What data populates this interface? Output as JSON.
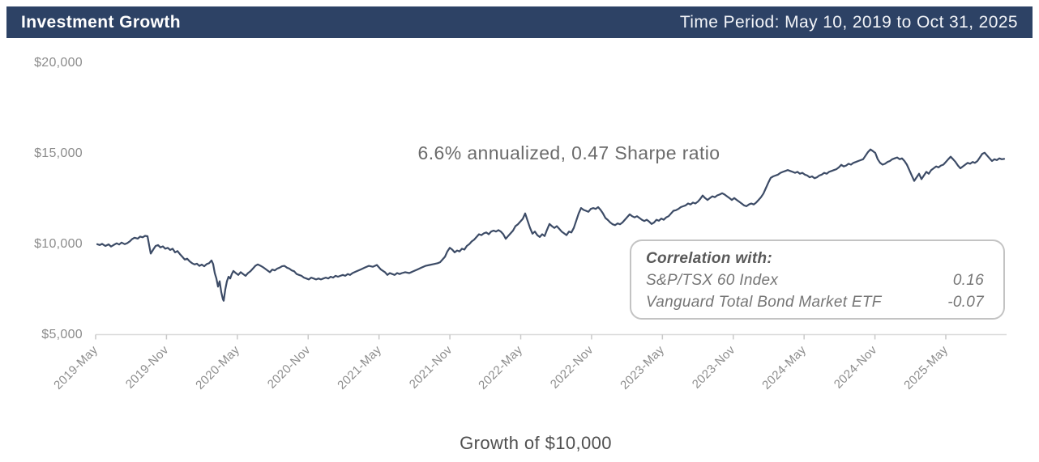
{
  "header": {
    "title": "Investment Growth",
    "time_period": "Time Period: May 10, 2019 to Oct 31, 2025"
  },
  "annotation": "6.6% annualized, 0.47 Sharpe ratio",
  "correlation_box": {
    "title": "Correlation with:",
    "rows": [
      {
        "label": "S&P/TSX 60 Index",
        "value": "0.16"
      },
      {
        "label": "Vanguard Total Bond Market ETF",
        "value": "-0.07"
      }
    ]
  },
  "xlabel": "Growth of $10,000",
  "colors": {
    "header_bg": "#2d4265",
    "line": "#3c4b66",
    "axis": "#dcdcdc",
    "tick": "#c9c9c9"
  },
  "chart_data": {
    "type": "line",
    "title": "Investment Growth",
    "xlabel": "Growth of $10,000",
    "annualized_return_pct": 6.6,
    "sharpe_ratio": 0.47,
    "correlations": {
      "S&P/TSX 60 Index": 0.16,
      "Vanguard Total Bond Market ETF": -0.07
    },
    "x_range": [
      "2019-05-10",
      "2025-10-31"
    ],
    "x_tick_labels": [
      "2019-May",
      "2019-Nov",
      "2020-May",
      "2020-Nov",
      "2021-May",
      "2021-Nov",
      "2022-May",
      "2022-Nov",
      "2023-May",
      "2023-Nov",
      "2024-May",
      "2024-Nov",
      "2025-May"
    ],
    "y_tick_values": [
      5000,
      10000,
      15000,
      20000
    ],
    "y_tick_labels": [
      "$5,000",
      "$10,000",
      "$15,000",
      "$20,000"
    ],
    "ylim": [
      5000,
      20800
    ],
    "gridlines": false,
    "legend": false,
    "points_format": "[x_position_px (linear in time across x_range), dollar_value]",
    "points": [
      [
        120,
        10000
      ],
      [
        123,
        9950
      ],
      [
        126,
        10020
      ],
      [
        130,
        9900
      ],
      [
        134,
        9990
      ],
      [
        137,
        9870
      ],
      [
        140,
        9950
      ],
      [
        144,
        10050
      ],
      [
        147,
        9980
      ],
      [
        150,
        10090
      ],
      [
        154,
        10000
      ],
      [
        157,
        10060
      ],
      [
        160,
        10150
      ],
      [
        163,
        10280
      ],
      [
        166,
        10360
      ],
      [
        170,
        10310
      ],
      [
        173,
        10420
      ],
      [
        176,
        10380
      ],
      [
        179,
        10460
      ],
      [
        182,
        10440
      ],
      [
        184,
        9950
      ],
      [
        186,
        9480
      ],
      [
        189,
        9700
      ],
      [
        192,
        9900
      ],
      [
        195,
        9950
      ],
      [
        198,
        9820
      ],
      [
        201,
        9880
      ],
      [
        204,
        9750
      ],
      [
        207,
        9800
      ],
      [
        210,
        9680
      ],
      [
        213,
        9750
      ],
      [
        216,
        9550
      ],
      [
        219,
        9620
      ],
      [
        222,
        9450
      ],
      [
        225,
        9300
      ],
      [
        228,
        9150
      ],
      [
        231,
        9200
      ],
      [
        234,
        9050
      ],
      [
        237,
        8950
      ],
      [
        240,
        8880
      ],
      [
        243,
        8920
      ],
      [
        246,
        8800
      ],
      [
        249,
        8870
      ],
      [
        252,
        8780
      ],
      [
        255,
        8900
      ],
      [
        258,
        8950
      ],
      [
        261,
        9100
      ],
      [
        263,
        8900
      ],
      [
        265,
        8400
      ],
      [
        267,
        8100
      ],
      [
        269,
        7650
      ],
      [
        271,
        7950
      ],
      [
        273,
        7350
      ],
      [
        275,
        6960
      ],
      [
        276,
        6870
      ],
      [
        278,
        7500
      ],
      [
        280,
        7950
      ],
      [
        282,
        8200
      ],
      [
        284,
        8100
      ],
      [
        286,
        8350
      ],
      [
        288,
        8520
      ],
      [
        291,
        8400
      ],
      [
        294,
        8300
      ],
      [
        297,
        8450
      ],
      [
        300,
        8350
      ],
      [
        303,
        8250
      ],
      [
        306,
        8400
      ],
      [
        309,
        8500
      ],
      [
        312,
        8650
      ],
      [
        315,
        8800
      ],
      [
        318,
        8880
      ],
      [
        321,
        8820
      ],
      [
        324,
        8740
      ],
      [
        327,
        8650
      ],
      [
        330,
        8550
      ],
      [
        333,
        8450
      ],
      [
        336,
        8600
      ],
      [
        339,
        8550
      ],
      [
        342,
        8650
      ],
      [
        345,
        8700
      ],
      [
        348,
        8780
      ],
      [
        351,
        8800
      ],
      [
        354,
        8700
      ],
      [
        357,
        8650
      ],
      [
        360,
        8550
      ],
      [
        363,
        8500
      ],
      [
        366,
        8350
      ],
      [
        369,
        8300
      ],
      [
        372,
        8250
      ],
      [
        375,
        8150
      ],
      [
        378,
        8100
      ],
      [
        381,
        8050
      ],
      [
        384,
        8150
      ],
      [
        387,
        8100
      ],
      [
        390,
        8050
      ],
      [
        393,
        8100
      ],
      [
        396,
        8050
      ],
      [
        399,
        8100
      ],
      [
        402,
        8150
      ],
      [
        405,
        8100
      ],
      [
        408,
        8200
      ],
      [
        411,
        8150
      ],
      [
        414,
        8250
      ],
      [
        417,
        8200
      ],
      [
        420,
        8250
      ],
      [
        423,
        8300
      ],
      [
        426,
        8250
      ],
      [
        429,
        8350
      ],
      [
        432,
        8300
      ],
      [
        435,
        8400
      ],
      [
        440,
        8500
      ],
      [
        445,
        8600
      ],
      [
        450,
        8700
      ],
      [
        455,
        8800
      ],
      [
        460,
        8750
      ],
      [
        465,
        8850
      ],
      [
        470,
        8600
      ],
      [
        475,
        8450
      ],
      [
        478,
        8300
      ],
      [
        481,
        8400
      ],
      [
        484,
        8350
      ],
      [
        487,
        8300
      ],
      [
        490,
        8400
      ],
      [
        493,
        8350
      ],
      [
        496,
        8400
      ],
      [
        500,
        8450
      ],
      [
        505,
        8400
      ],
      [
        510,
        8500
      ],
      [
        515,
        8600
      ],
      [
        520,
        8700
      ],
      [
        525,
        8800
      ],
      [
        530,
        8850
      ],
      [
        535,
        8900
      ],
      [
        540,
        8950
      ],
      [
        543,
        9000
      ],
      [
        546,
        9150
      ],
      [
        549,
        9300
      ],
      [
        552,
        9600
      ],
      [
        555,
        9800
      ],
      [
        558,
        9700
      ],
      [
        561,
        9550
      ],
      [
        564,
        9650
      ],
      [
        567,
        9600
      ],
      [
        570,
        9750
      ],
      [
        573,
        9700
      ],
      [
        576,
        9900
      ],
      [
        579,
        10000
      ],
      [
        582,
        10150
      ],
      [
        585,
        10250
      ],
      [
        588,
        10400
      ],
      [
        591,
        10550
      ],
      [
        594,
        10500
      ],
      [
        597,
        10600
      ],
      [
        600,
        10650
      ],
      [
        603,
        10550
      ],
      [
        606,
        10700
      ],
      [
        609,
        10750
      ],
      [
        612,
        10700
      ],
      [
        615,
        10780
      ],
      [
        618,
        10700
      ],
      [
        621,
        10550
      ],
      [
        624,
        10300
      ],
      [
        627,
        10450
      ],
      [
        630,
        10600
      ],
      [
        633,
        10750
      ],
      [
        636,
        11000
      ],
      [
        639,
        11100
      ],
      [
        642,
        11250
      ],
      [
        645,
        11400
      ],
      [
        648,
        11700
      ],
      [
        651,
        11300
      ],
      [
        654,
        10900
      ],
      [
        657,
        10580
      ],
      [
        660,
        10700
      ],
      [
        663,
        10500
      ],
      [
        666,
        10400
      ],
      [
        669,
        10550
      ],
      [
        672,
        10450
      ],
      [
        675,
        10800
      ],
      [
        678,
        11120
      ],
      [
        681,
        11000
      ],
      [
        684,
        10900
      ],
      [
        687,
        11000
      ],
      [
        690,
        10850
      ],
      [
        693,
        10700
      ],
      [
        696,
        10600
      ],
      [
        699,
        10500
      ],
      [
        702,
        10700
      ],
      [
        705,
        10650
      ],
      [
        708,
        10900
      ],
      [
        711,
        11300
      ],
      [
        714,
        11700
      ],
      [
        717,
        12000
      ],
      [
        720,
        11900
      ],
      [
        723,
        11850
      ],
      [
        726,
        11790
      ],
      [
        729,
        11950
      ],
      [
        732,
        12000
      ],
      [
        735,
        11950
      ],
      [
        738,
        12050
      ],
      [
        741,
        11900
      ],
      [
        744,
        11700
      ],
      [
        747,
        11450
      ],
      [
        750,
        11340
      ],
      [
        753,
        11200
      ],
      [
        756,
        11100
      ],
      [
        759,
        11050
      ],
      [
        762,
        11150
      ],
      [
        765,
        11100
      ],
      [
        768,
        11200
      ],
      [
        771,
        11350
      ],
      [
        774,
        11500
      ],
      [
        777,
        11650
      ],
      [
        780,
        11550
      ],
      [
        783,
        11480
      ],
      [
        786,
        11550
      ],
      [
        789,
        11450
      ],
      [
        792,
        11350
      ],
      [
        795,
        11280
      ],
      [
        798,
        11350
      ],
      [
        801,
        11250
      ],
      [
        804,
        11120
      ],
      [
        807,
        11200
      ],
      [
        810,
        11350
      ],
      [
        813,
        11300
      ],
      [
        816,
        11420
      ],
      [
        819,
        11350
      ],
      [
        822,
        11480
      ],
      [
        825,
        11550
      ],
      [
        828,
        11700
      ],
      [
        831,
        11850
      ],
      [
        834,
        11880
      ],
      [
        837,
        11950
      ],
      [
        840,
        12050
      ],
      [
        843,
        12100
      ],
      [
        846,
        12150
      ],
      [
        849,
        12250
      ],
      [
        852,
        12200
      ],
      [
        855,
        12300
      ],
      [
        858,
        12250
      ],
      [
        861,
        12350
      ],
      [
        864,
        12500
      ],
      [
        867,
        12690
      ],
      [
        870,
        12550
      ],
      [
        873,
        12450
      ],
      [
        876,
        12550
      ],
      [
        879,
        12650
      ],
      [
        882,
        12600
      ],
      [
        885,
        12700
      ],
      [
        888,
        12750
      ],
      [
        891,
        12820
      ],
      [
        894,
        12750
      ],
      [
        897,
        12650
      ],
      [
        900,
        12550
      ],
      [
        903,
        12450
      ],
      [
        906,
        12550
      ],
      [
        909,
        12450
      ],
      [
        912,
        12350
      ],
      [
        915,
        12250
      ],
      [
        918,
        12150
      ],
      [
        921,
        12100
      ],
      [
        924,
        12200
      ],
      [
        927,
        12250
      ],
      [
        930,
        12200
      ],
      [
        933,
        12300
      ],
      [
        936,
        12450
      ],
      [
        939,
        12600
      ],
      [
        942,
        12800
      ],
      [
        945,
        13100
      ],
      [
        948,
        13400
      ],
      [
        951,
        13670
      ],
      [
        954,
        13750
      ],
      [
        957,
        13800
      ],
      [
        960,
        13850
      ],
      [
        963,
        13950
      ],
      [
        966,
        14000
      ],
      [
        969,
        14050
      ],
      [
        972,
        14100
      ],
      [
        975,
        14050
      ],
      [
        978,
        14000
      ],
      [
        981,
        13950
      ],
      [
        984,
        14000
      ],
      [
        987,
        13900
      ],
      [
        990,
        13950
      ],
      [
        993,
        13850
      ],
      [
        996,
        13800
      ],
      [
        999,
        13700
      ],
      [
        1002,
        13750
      ],
      [
        1005,
        13650
      ],
      [
        1008,
        13700
      ],
      [
        1011,
        13800
      ],
      [
        1014,
        13850
      ],
      [
        1017,
        13950
      ],
      [
        1020,
        13900
      ],
      [
        1023,
        14000
      ],
      [
        1026,
        14050
      ],
      [
        1029,
        14100
      ],
      [
        1032,
        14150
      ],
      [
        1035,
        14250
      ],
      [
        1038,
        14390
      ],
      [
        1041,
        14300
      ],
      [
        1044,
        14350
      ],
      [
        1047,
        14450
      ],
      [
        1050,
        14400
      ],
      [
        1053,
        14500
      ],
      [
        1056,
        14550
      ],
      [
        1059,
        14600
      ],
      [
        1062,
        14650
      ],
      [
        1065,
        14700
      ],
      [
        1068,
        14900
      ],
      [
        1071,
        15100
      ],
      [
        1074,
        15240
      ],
      [
        1077,
        15150
      ],
      [
        1080,
        15050
      ],
      [
        1083,
        14700
      ],
      [
        1086,
        14500
      ],
      [
        1089,
        14400
      ],
      [
        1092,
        14450
      ],
      [
        1095,
        14550
      ],
      [
        1098,
        14600
      ],
      [
        1101,
        14700
      ],
      [
        1104,
        14750
      ],
      [
        1107,
        14800
      ],
      [
        1110,
        14700
      ],
      [
        1113,
        14750
      ],
      [
        1116,
        14600
      ],
      [
        1119,
        14400
      ],
      [
        1122,
        14100
      ],
      [
        1125,
        13800
      ],
      [
        1128,
        13500
      ],
      [
        1131,
        13700
      ],
      [
        1134,
        13900
      ],
      [
        1137,
        13600
      ],
      [
        1140,
        13800
      ],
      [
        1143,
        14000
      ],
      [
        1146,
        13900
      ],
      [
        1149,
        14100
      ],
      [
        1152,
        14200
      ],
      [
        1155,
        14300
      ],
      [
        1158,
        14250
      ],
      [
        1161,
        14350
      ],
      [
        1164,
        14400
      ],
      [
        1167,
        14550
      ],
      [
        1170,
        14700
      ],
      [
        1173,
        14840
      ],
      [
        1176,
        14700
      ],
      [
        1179,
        14550
      ],
      [
        1182,
        14350
      ],
      [
        1185,
        14200
      ],
      [
        1188,
        14300
      ],
      [
        1191,
        14400
      ],
      [
        1194,
        14500
      ],
      [
        1197,
        14450
      ],
      [
        1200,
        14550
      ],
      [
        1203,
        14500
      ],
      [
        1206,
        14600
      ],
      [
        1209,
        14800
      ],
      [
        1212,
        15000
      ],
      [
        1215,
        15060
      ],
      [
        1218,
        14900
      ],
      [
        1221,
        14750
      ],
      [
        1224,
        14600
      ],
      [
        1227,
        14700
      ],
      [
        1230,
        14650
      ],
      [
        1233,
        14750
      ],
      [
        1236,
        14700
      ],
      [
        1239,
        14720
      ]
    ]
  }
}
